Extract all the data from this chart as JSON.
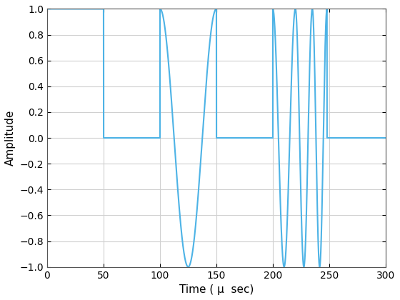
{
  "title": "",
  "xlabel": "Time ( μ  sec)",
  "ylabel": "Amplitude",
  "xlim": [
    0,
    300
  ],
  "ylim": [
    -1,
    1
  ],
  "xticks": [
    0,
    50,
    100,
    150,
    200,
    250,
    300
  ],
  "yticks": [
    -1,
    -0.8,
    -0.6,
    -0.4,
    -0.2,
    0,
    0.2,
    0.4,
    0.6,
    0.8,
    1
  ],
  "line_color": "#4db3e6",
  "line_width": 1.5,
  "grid_color": "#d0d0d0",
  "background_color": "#ffffff",
  "figsize": [
    5.6,
    4.2
  ],
  "dpi": 100
}
